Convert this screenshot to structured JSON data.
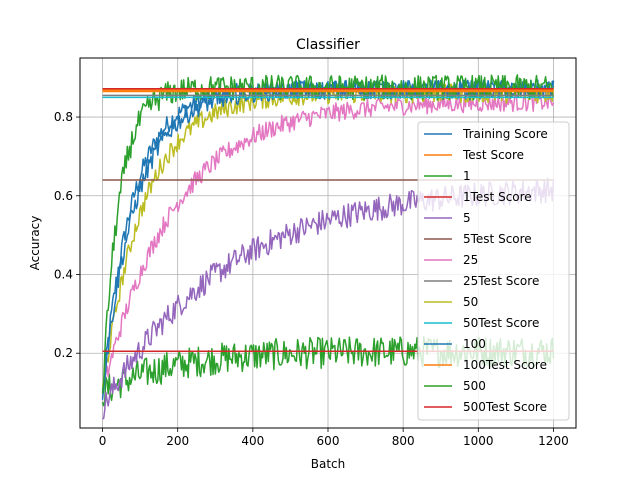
{
  "chart_data": {
    "type": "line",
    "title": "Classifier",
    "xlabel": "Batch",
    "ylabel": "Accuracy",
    "xlim": [
      -60,
      1260
    ],
    "ylim": [
      0.01,
      0.95
    ],
    "xticks": [
      0,
      200,
      400,
      600,
      800,
      1000,
      1200
    ],
    "yticks": [
      0.2,
      0.4,
      0.6,
      0.8
    ],
    "xtick_labels": [
      "0",
      "200",
      "400",
      "600",
      "800",
      "1000",
      "1200"
    ],
    "ytick_labels": [
      "0.2",
      "0.4",
      "0.6",
      "0.8"
    ],
    "grid": true,
    "legend_position": "lower-right",
    "series": [
      {
        "name": "Training Score",
        "color": "#1f77b4",
        "kind": "curve",
        "start": 0.1,
        "plateau": 0.87,
        "tau": 80,
        "noise": 0.015
      },
      {
        "name": "Test Score",
        "color": "#ff7f0e",
        "kind": "flat",
        "value": 0.865
      },
      {
        "name": "1",
        "color": "#2ca02c",
        "kind": "curve",
        "start": 0.1,
        "plateau": 0.205,
        "tau": 180,
        "noise": 0.025
      },
      {
        "name": "1Test Score",
        "color": "#d62728",
        "kind": "flat",
        "value": 0.205
      },
      {
        "name": "5",
        "color": "#9467bd",
        "kind": "curve",
        "start": 0.06,
        "plateau": 0.63,
        "tau": 330,
        "noise": 0.02
      },
      {
        "name": "5Test Score",
        "color": "#8c564b",
        "kind": "flat",
        "value": 0.64
      },
      {
        "name": "25",
        "color": "#e377c2",
        "kind": "curve",
        "start": 0.1,
        "plateau": 0.84,
        "tau": 190,
        "noise": 0.015
      },
      {
        "name": "25Test Score",
        "color": "#7f7f7f",
        "kind": "flat",
        "value": 0.855
      },
      {
        "name": "50",
        "color": "#bcbd22",
        "kind": "curve",
        "start": 0.1,
        "plateau": 0.86,
        "tau": 110,
        "noise": 0.015
      },
      {
        "name": "50Test Score",
        "color": "#17becf",
        "kind": "flat",
        "value": 0.85
      },
      {
        "name": "100",
        "color": "#1f77b4",
        "kind": "curve",
        "start": 0.1,
        "plateau": 0.87,
        "tau": 90,
        "noise": 0.015
      },
      {
        "name": "100Test Score",
        "color": "#ff7f0e",
        "kind": "flat",
        "value": 0.868
      },
      {
        "name": "500",
        "color": "#2ca02c",
        "kind": "curve",
        "start": 0.1,
        "plateau": 0.875,
        "tau": 45,
        "noise": 0.02
      },
      {
        "name": "500Test Score",
        "color": "#d62728",
        "kind": "flat",
        "value": 0.872
      }
    ]
  }
}
